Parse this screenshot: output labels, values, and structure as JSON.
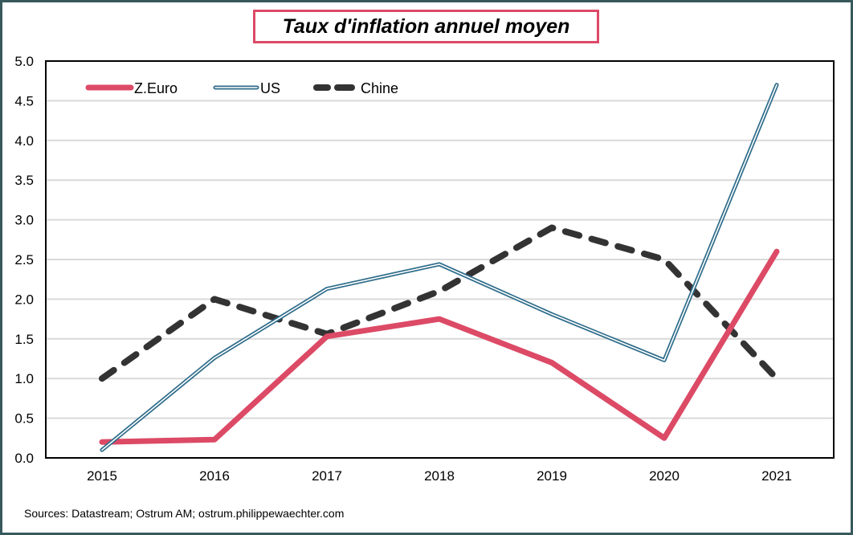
{
  "chart_data": {
    "type": "line",
    "title": "Taux d'inflation annuel moyen",
    "xlabel": "",
    "ylabel": "",
    "categories": [
      "2015",
      "2016",
      "2017",
      "2018",
      "2019",
      "2020",
      "2021"
    ],
    "ylim": [
      0.0,
      5.0
    ],
    "yticks": [
      "0.0",
      "0.5",
      "1.0",
      "1.5",
      "2.0",
      "2.5",
      "3.0",
      "3.5",
      "4.0",
      "4.5",
      "5.0"
    ],
    "grid": true,
    "legend_position": "top-left",
    "series": [
      {
        "name": "Z.Euro",
        "color": "#dc4a66",
        "style": "solid-thick",
        "values": [
          0.2,
          0.23,
          1.53,
          1.75,
          1.2,
          0.25,
          2.6
        ]
      },
      {
        "name": "US",
        "color": "#2e6c8a",
        "style": "double-line",
        "values": [
          0.1,
          1.26,
          2.13,
          2.44,
          1.81,
          1.23,
          4.7
        ]
      },
      {
        "name": "Chine",
        "color": "#333333",
        "style": "dashed",
        "values": [
          1.0,
          2.0,
          1.56,
          2.1,
          2.9,
          2.5,
          1.0
        ]
      }
    ]
  },
  "source": "Sources: Datastream;  Ostrum  AM; ostrum.philippewaechter.com",
  "colors": {
    "frame": "#37595c",
    "title_border": "#dc4a66",
    "grid": "#d9d9d9"
  }
}
